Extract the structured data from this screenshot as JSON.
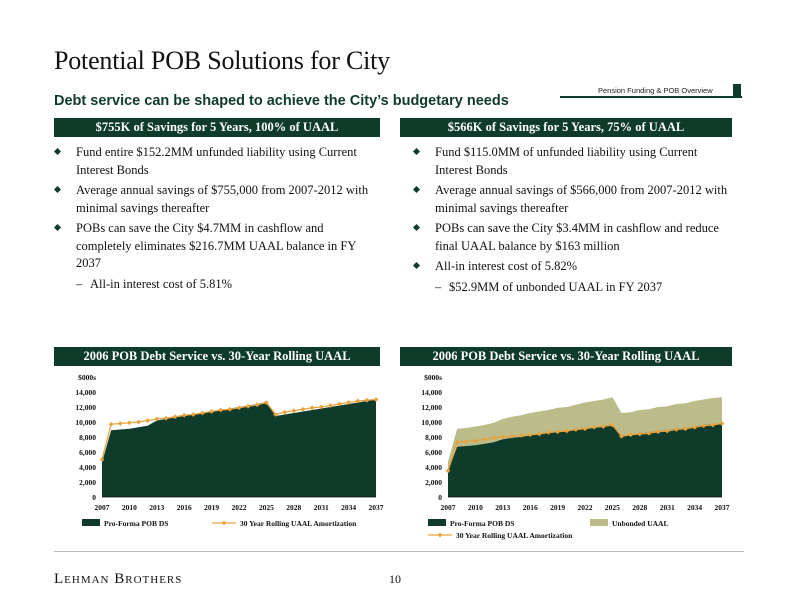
{
  "title": "Potential POB Solutions for City",
  "subtitle": "Debt service can be shaped to achieve the City’s budgetary needs",
  "tag": "Pension Funding & POB Overview",
  "left": {
    "header": "$755K of Savings for 5 Years, 100% of UAAL",
    "bullets": [
      "Fund entire $152.2MM unfunded liability using Current Interest Bonds",
      "Average annual savings of $755,000 from 2007-2012 with minimal savings thereafter",
      "POBs can save the City $4.7MM in cashflow and completely eliminates $216.7MM UAAL balance in FY 2037"
    ],
    "sub_bullet": "All-in interest cost of 5.81%",
    "chart_header": "2006 POB Debt Service vs. 30-Year Rolling UAAL"
  },
  "right": {
    "header": "$566K of Savings for 5 Years, 75% of UAAL",
    "bullets": [
      "Fund $115.0MM of unfunded liability using Current Interest Bonds",
      "Average annual savings of $566,000 from 2007-2012 with minimal savings thereafter",
      "POBs can save the City $3.4MM in cashflow and reduce final UAAL balance by $163 million",
      "All-in interest cost of 5.82%"
    ],
    "sub_bullet": "$52.9MM of unbonded UAAL in FY 2037",
    "chart_header": "2006 POB Debt Service vs. 30-Year Rolling UAAL"
  },
  "colors": {
    "dark_green": "#0f3b2a",
    "olive": "#bcbc8a",
    "gold": "#e8a23c"
  },
  "chart_data": [
    {
      "type": "area",
      "title": "2006 POB Debt Service vs. 30-Year Rolling UAAL",
      "ylim": [
        0,
        16000
      ],
      "y_ticks": [
        "0",
        "2,000",
        "4,000",
        "6,000",
        "8,000",
        "10,000",
        "12,000",
        "14,000",
        "$000s"
      ],
      "x_ticks": [
        "2007",
        "2010",
        "2013",
        "2016",
        "2019",
        "2022",
        "2025",
        "2028",
        "2031",
        "2034",
        "2037"
      ],
      "x": [
        2007,
        2008,
        2009,
        2010,
        2011,
        2012,
        2013,
        2014,
        2015,
        2016,
        2017,
        2018,
        2019,
        2020,
        2021,
        2022,
        2023,
        2024,
        2025,
        2026,
        2027,
        2028,
        2029,
        2030,
        2031,
        2032,
        2033,
        2034,
        2035,
        2036,
        2037
      ],
      "series": [
        {
          "name": "Pro-Forma POB DS",
          "kind": "area",
          "values": [
            4600,
            8900,
            9000,
            9100,
            9300,
            9500,
            10200,
            10400,
            10600,
            10800,
            11000,
            11200,
            11400,
            11600,
            11800,
            12000,
            12200,
            12400,
            12700,
            10800,
            11000,
            11200,
            11400,
            11600,
            11800,
            12000,
            12200,
            12400,
            12600,
            12800,
            13000
          ]
        },
        {
          "name": "30 Year Rolling UAAL Amortization",
          "kind": "line",
          "values": [
            5000,
            9700,
            9800,
            9900,
            10000,
            10200,
            10400,
            10500,
            10700,
            10900,
            11000,
            11200,
            11400,
            11600,
            11700,
            11900,
            12100,
            12300,
            12600,
            11000,
            11300,
            11500,
            11700,
            11900,
            12000,
            12200,
            12400,
            12600,
            12800,
            12900,
            13000
          ]
        }
      ],
      "legend": [
        "Pro-Forma POB DS",
        "30 Year Rolling UAAL Amortization"
      ]
    },
    {
      "type": "area",
      "title": "2006 POB Debt Service vs. 30-Year Rolling UAAL",
      "ylim": [
        0,
        16000
      ],
      "y_ticks": [
        "0",
        "2,000",
        "4,000",
        "6,000",
        "8,000",
        "10,000",
        "12,000",
        "14,000",
        "$000s"
      ],
      "x_ticks": [
        "2007",
        "2010",
        "2013",
        "2016",
        "2019",
        "2022",
        "2025",
        "2028",
        "2031",
        "2034",
        "2037"
      ],
      "x": [
        2007,
        2008,
        2009,
        2010,
        2011,
        2012,
        2013,
        2014,
        2015,
        2016,
        2017,
        2018,
        2019,
        2020,
        2021,
        2022,
        2023,
        2024,
        2025,
        2026,
        2027,
        2028,
        2029,
        2030,
        2031,
        2032,
        2033,
        2034,
        2035,
        2036,
        2037
      ],
      "series": [
        {
          "name": "Pro-Forma POB DS",
          "kind": "area",
          "values": [
            3400,
            6700,
            6800,
            6900,
            7100,
            7300,
            7700,
            7900,
            8000,
            8200,
            8400,
            8500,
            8700,
            8800,
            9000,
            9200,
            9300,
            9500,
            9700,
            8200,
            8300,
            8500,
            8600,
            8800,
            8900,
            9100,
            9200,
            9400,
            9600,
            9700,
            9800
          ]
        },
        {
          "name": "Unbonded UAAL",
          "kind": "stack",
          "values": [
            1300,
            2400,
            2400,
            2500,
            2500,
            2600,
            2700,
            2800,
            2900,
            3000,
            3000,
            3100,
            3200,
            3200,
            3300,
            3400,
            3500,
            3500,
            3600,
            3000,
            3000,
            3100,
            3100,
            3200,
            3200,
            3300,
            3300,
            3400,
            3400,
            3500,
            3500
          ]
        },
        {
          "name": "30 Year Rolling UAAL Amortization",
          "kind": "line",
          "values": [
            3500,
            7300,
            7400,
            7500,
            7700,
            7900,
            8000,
            8100,
            8200,
            8300,
            8400,
            8600,
            8700,
            8800,
            9000,
            9100,
            9300,
            9400,
            9600,
            8100,
            8300,
            8400,
            8500,
            8700,
            8800,
            9000,
            9100,
            9300,
            9500,
            9600,
            9800
          ]
        }
      ],
      "legend": [
        "Pro-Forma POB DS",
        "Unbonded UAAL",
        "30 Year Rolling UAAL Amortization"
      ]
    }
  ],
  "footer": "Lehman Brothers",
  "page_number": "10"
}
